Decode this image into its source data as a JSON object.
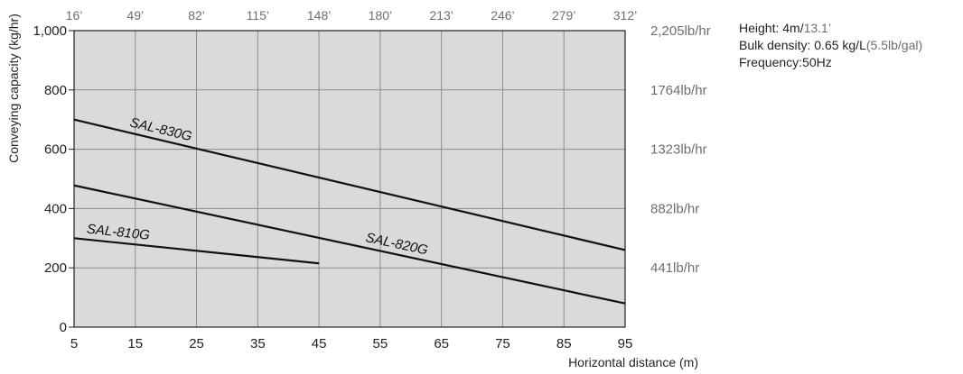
{
  "chart_data": {
    "type": "line",
    "xlabel": "Horizontal distance (m)",
    "ylabel": "Conveying capacity (kg/hr)",
    "xlim": [
      5,
      95
    ],
    "ylim": [
      0,
      1000
    ],
    "x_ticks": [
      "5",
      "15",
      "25",
      "35",
      "45",
      "55",
      "65",
      "75",
      "85",
      "95"
    ],
    "y_ticks": [
      {
        "value": 0,
        "label": "0"
      },
      {
        "value": 200,
        "label": "200"
      },
      {
        "value": 400,
        "label": "400"
      },
      {
        "value": 600,
        "label": "600"
      },
      {
        "value": 800,
        "label": "800"
      },
      {
        "value": 1000,
        "label": "1,000"
      }
    ],
    "top_axis_ticks": [
      "16’",
      "49’",
      "82’",
      "115’",
      "148’",
      "180’",
      "213’",
      "246’",
      "279’",
      "312’"
    ],
    "right_axis_ticks": [
      {
        "value": 200,
        "label": "441lb/hr"
      },
      {
        "value": 400,
        "label": "882lb/hr"
      },
      {
        "value": 600,
        "label": "1323lb/hr"
      },
      {
        "value": 800,
        "label": "1764lb/hr"
      },
      {
        "value": 1000,
        "label": "2,205lb/hr"
      }
    ],
    "grid": true,
    "plot_background": "#d9dadb",
    "grid_color": "#8c8d8f",
    "series": [
      {
        "name": "SAL-830G",
        "x": [
          5,
          95
        ],
        "y": [
          700,
          260
        ]
      },
      {
        "name": "SAL-820G",
        "x": [
          5,
          95
        ],
        "y": [
          478,
          80
        ]
      },
      {
        "name": "SAL-810G",
        "x": [
          5,
          45
        ],
        "y": [
          300,
          215
        ]
      }
    ]
  },
  "specs": {
    "height_label": "Height: 4m/",
    "height_ft": "13.1’",
    "density_label": "Bulk density: 0.65 kg/L",
    "density_alt": "(5.5lb/gal)",
    "frequency": "Frequency:50Hz"
  }
}
